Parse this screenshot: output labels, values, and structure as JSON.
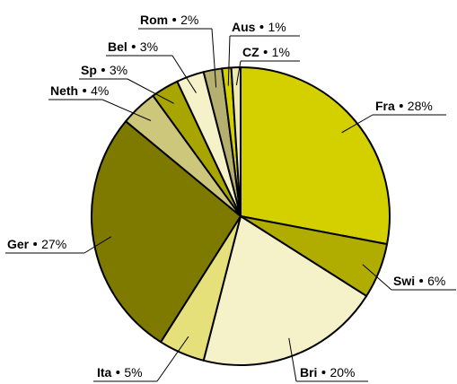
{
  "chart_data": {
    "type": "pie",
    "categories": [
      "Fra",
      "Swi",
      "Bri",
      "Ita",
      "Ger",
      "Neth",
      "Sp",
      "Bel",
      "Rom",
      "Aus",
      "CZ"
    ],
    "values": [
      28,
      6,
      20,
      5,
      27,
      4,
      3,
      3,
      2,
      1,
      1
    ],
    "value_labels": [
      "28%",
      "6%",
      "20%",
      "5%",
      "27%",
      "4%",
      "3%",
      "3%",
      "2%",
      "1%",
      "1%"
    ],
    "colors": [
      "#d4d000",
      "#b0ad00",
      "#f5f1c8",
      "#e6e07a",
      "#7e7a00",
      "#ccc77a",
      "#a8a400",
      "#f5f1c8",
      "#b5b070",
      "#d4d000",
      "#eeeab0"
    ]
  }
}
